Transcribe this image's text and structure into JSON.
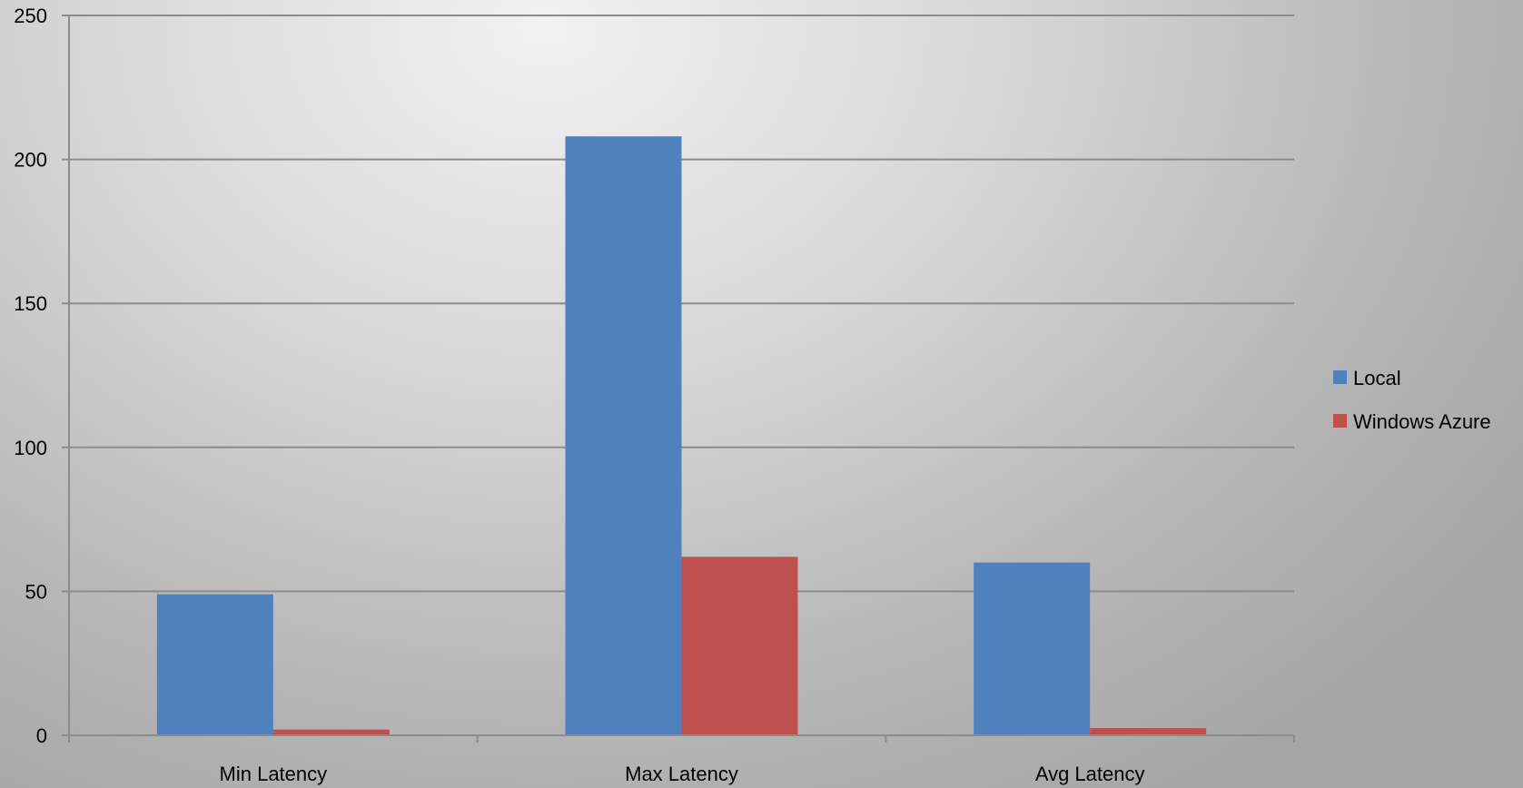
{
  "chart_data": {
    "type": "bar",
    "categories": [
      "Min Latency",
      "Max Latency",
      "Avg Latency"
    ],
    "series": [
      {
        "name": "Local",
        "values": [
          49,
          208,
          60
        ],
        "color": "#4F81BD"
      },
      {
        "name": "Windows Azure",
        "values": [
          2,
          62,
          2.5
        ],
        "color": "#C0504D"
      }
    ],
    "ylim": [
      0,
      250
    ],
    "yticks": [
      0,
      50,
      100,
      150,
      200,
      250
    ],
    "grid": true,
    "legend_position": "right"
  }
}
